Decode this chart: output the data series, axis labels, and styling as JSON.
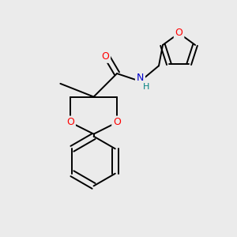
{
  "bg_color": "#ebebeb",
  "atom_colors": {
    "O": "#ff0000",
    "N": "#0000cc",
    "C": "#000000",
    "H": "#008080"
  },
  "bond_color": "#000000",
  "bond_width": 1.4,
  "fig_size": [
    3.0,
    3.0
  ],
  "dpi": 100
}
